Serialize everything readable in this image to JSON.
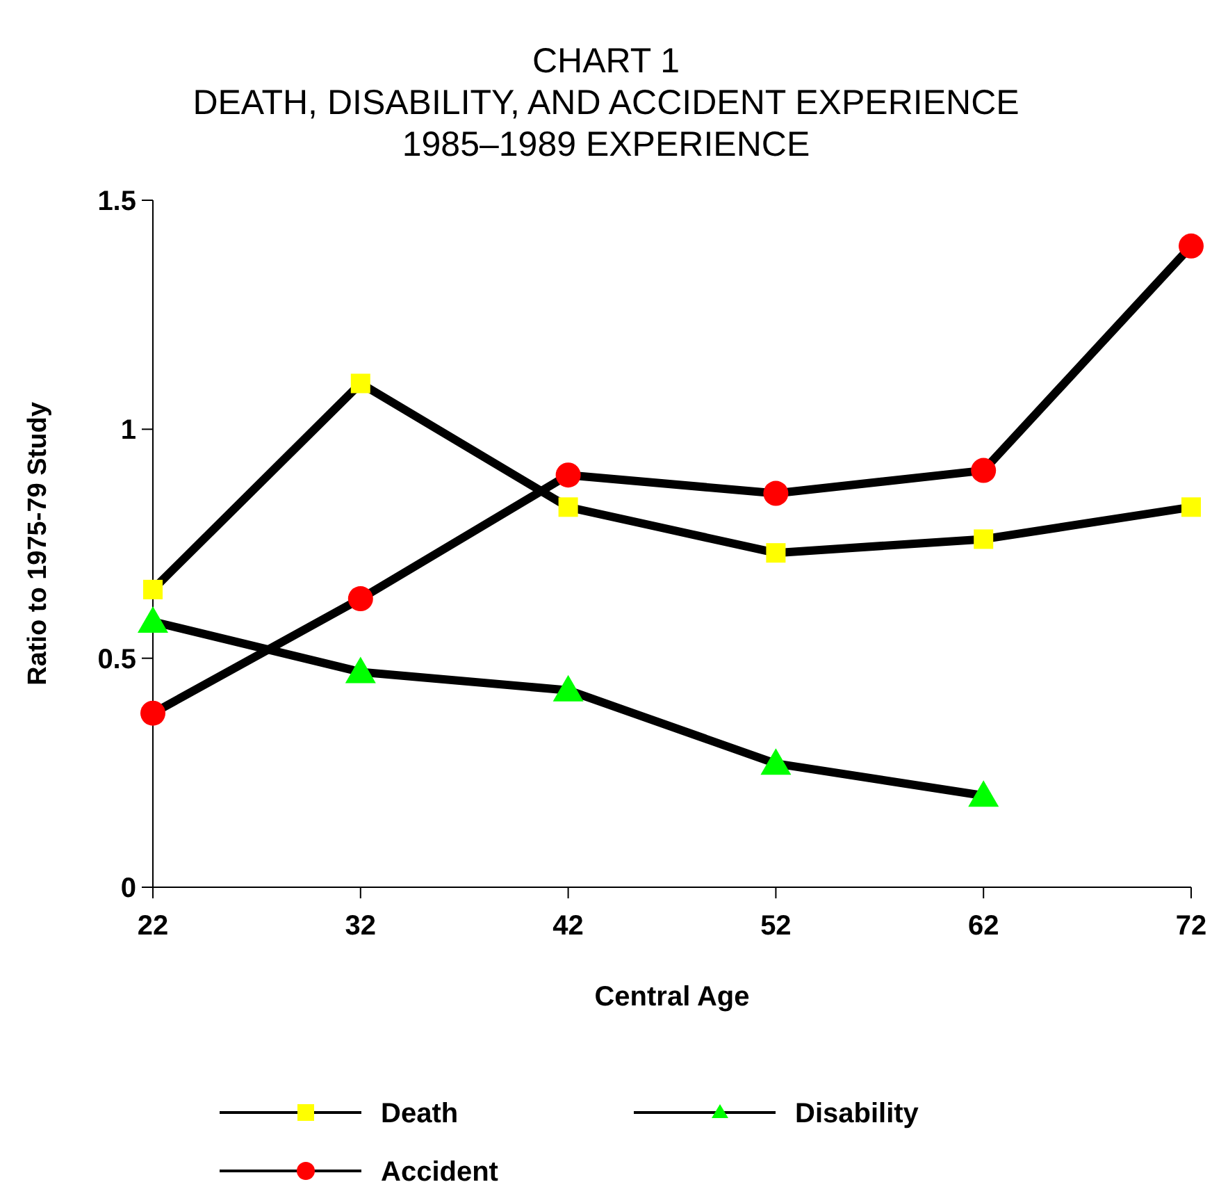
{
  "chart_data": {
    "type": "line",
    "title": "CHART 1\nDEATH, DISABILITY, AND ACCIDENT EXPERIENCE\n1985–1989 EXPERIENCE",
    "xlabel": "Central Age",
    "ylabel": "Ratio to 1975-79 Study",
    "x": [
      22,
      32,
      42,
      52,
      62,
      72
    ],
    "xlim": [
      22,
      72
    ],
    "xticks": [
      22,
      32,
      42,
      52,
      62,
      72
    ],
    "ylim": [
      0,
      1.5
    ],
    "yticks": [
      0,
      {
        "value": 0.5,
        "label": "0.5"
      },
      1,
      1.5
    ],
    "grid": false,
    "legend": "bottom",
    "line_style": "solid",
    "series": [
      {
        "name": "Death",
        "color": "#ffff00",
        "marker": "square",
        "values": [
          0.65,
          1.1,
          0.83,
          0.73,
          0.76,
          0.83
        ]
      },
      {
        "name": "Disability",
        "color": "#00ff00",
        "marker": "triangle",
        "values": [
          0.58,
          0.47,
          0.43,
          0.27,
          0.2,
          null
        ]
      },
      {
        "name": "Accident",
        "color": "#ff0000",
        "marker": "circle",
        "values": [
          0.38,
          0.63,
          0.9,
          0.86,
          0.91,
          1.4
        ]
      }
    ]
  }
}
